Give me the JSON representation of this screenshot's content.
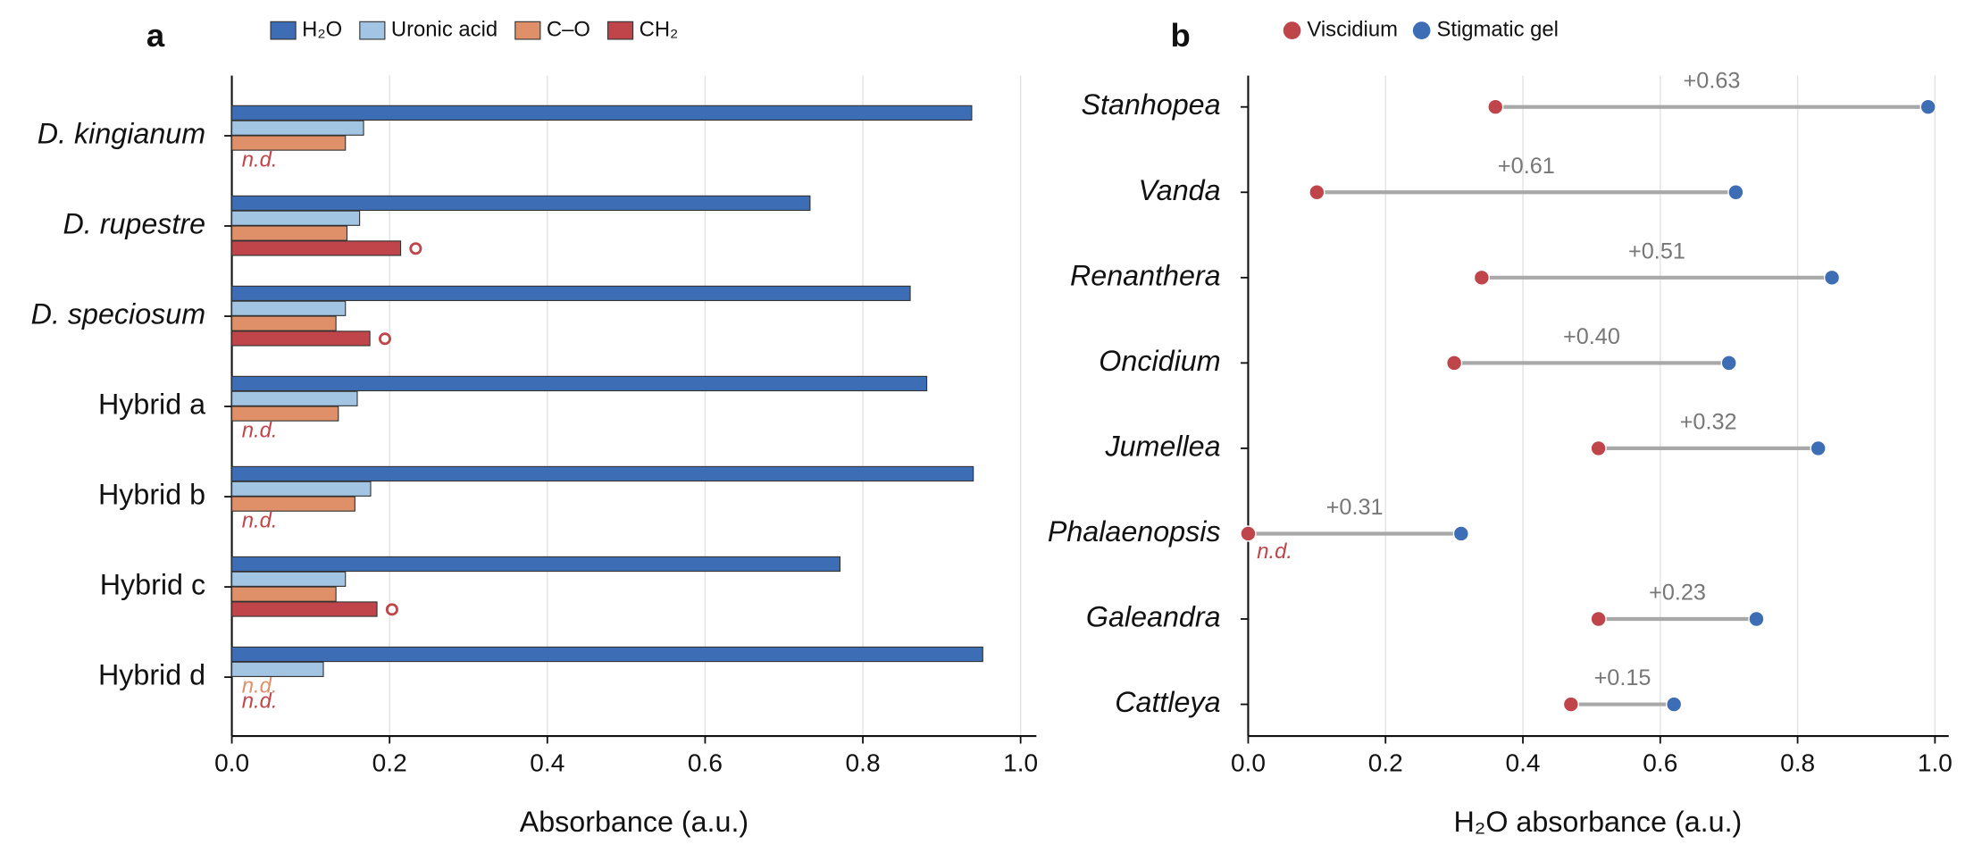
{
  "chart_data": [
    {
      "type": "bar",
      "orientation": "horizontal",
      "panel_label": "a",
      "categories": [
        "D. kingianum",
        "D. rupestre",
        "D. speciosum",
        "Hybrid a",
        "Hybrid b",
        "Hybrid c",
        "Hybrid d"
      ],
      "series": [
        {
          "name": "H₂O",
          "color": "#3d6db4",
          "values": [
            0.938,
            0.733,
            0.86,
            0.881,
            0.94,
            0.771,
            0.952
          ]
        },
        {
          "name": "Uronic acid",
          "color": "#a3c5e4",
          "values": [
            0.167,
            0.162,
            0.144,
            0.159,
            0.176,
            0.144,
            0.116
          ]
        },
        {
          "name": "C–O",
          "color": "#df9068",
          "values": [
            0.144,
            0.146,
            0.132,
            0.135,
            0.156,
            0.132,
            null
          ]
        },
        {
          "name": "CH₂",
          "color": "#c0454b",
          "values": [
            null,
            0.214,
            0.175,
            null,
            null,
            0.184,
            null
          ]
        }
      ],
      "nd_label": "n.d.",
      "xlabel": "Absorbance (a.u.)",
      "xlim": [
        0,
        1.02
      ],
      "xticks": [
        {
          "value": 0,
          "label": "0.0"
        },
        {
          "value": 0.2,
          "label": "0.2"
        },
        {
          "value": 0.4,
          "label": "0.4"
        },
        {
          "value": 0.6,
          "label": "0.6"
        },
        {
          "value": 0.8,
          "label": "0.8"
        },
        {
          "value": 1,
          "label": "1.0"
        }
      ],
      "grid": true
    },
    {
      "type": "dumbbell",
      "panel_label": "b",
      "categories": [
        "Stanhopea",
        "Vanda",
        "Renanthera",
        "Oncidium",
        "Jumellea",
        "Phalaenopsis",
        "Galeandra",
        "Cattleya"
      ],
      "series": [
        {
          "name": "Viscidium",
          "color": "#c0454b",
          "values": [
            0.36,
            0.1,
            0.34,
            0.3,
            0.51,
            null,
            0.51,
            0.47
          ]
        },
        {
          "name": "Stigmatic gel",
          "color": "#3d6db4",
          "values": [
            0.99,
            0.71,
            0.85,
            0.7,
            0.83,
            0.31,
            0.74,
            0.62
          ]
        }
      ],
      "difference_labels": [
        "+0.63",
        "+0.61",
        "+0.51",
        "+0.40",
        "+0.32",
        "+0.31",
        "+0.23",
        "+0.15"
      ],
      "nd_label": "n.d.",
      "xlabel": "H₂O absorbance (a.u.)",
      "xlim": [
        0,
        1.02
      ],
      "xticks": [
        {
          "value": 0,
          "label": "0.0"
        },
        {
          "value": 0.2,
          "label": "0.2"
        },
        {
          "value": 0.4,
          "label": "0.4"
        },
        {
          "value": 0.6,
          "label": "0.6"
        },
        {
          "value": 0.8,
          "label": "0.8"
        },
        {
          "value": 1,
          "label": "1.0"
        }
      ],
      "grid": true
    }
  ]
}
